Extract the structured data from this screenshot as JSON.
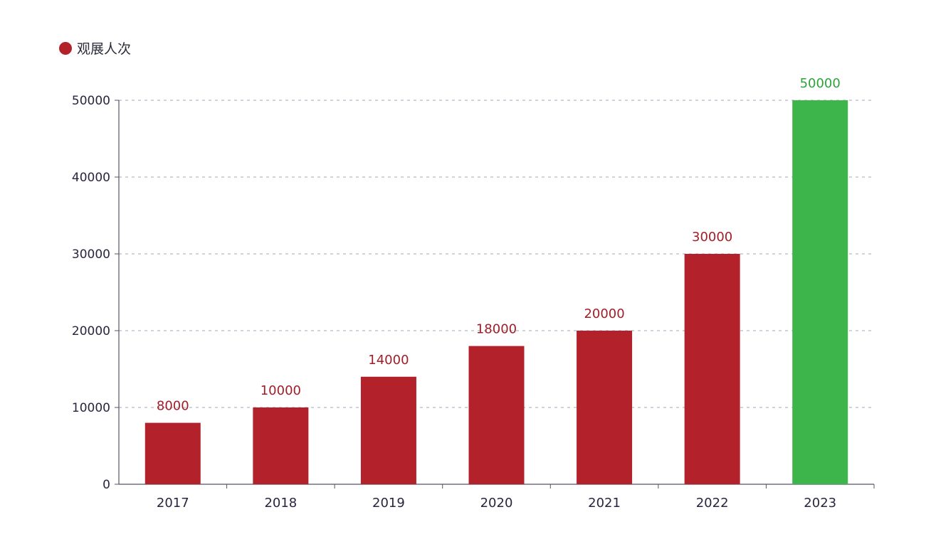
{
  "chart_data": {
    "type": "bar",
    "categories": [
      "2017",
      "2018",
      "2019",
      "2020",
      "2021",
      "2022",
      "2023"
    ],
    "series": [
      {
        "name": "观展人次",
        "values": [
          8000,
          10000,
          14000,
          18000,
          20000,
          30000,
          50000
        ]
      }
    ],
    "data_labels": [
      "8000",
      "10000",
      "14000",
      "18000",
      "20000",
      "30000",
      "50000"
    ],
    "y_ticks": [
      "0",
      "10000",
      "20000",
      "30000",
      "40000",
      "50000"
    ],
    "ylim": [
      0,
      50000
    ],
    "grid": "horizontal dashed",
    "legend_position": "top-left",
    "colors": {
      "bar": "#b3222a",
      "highlight_bar": "#3db54a",
      "bar_label": "#a01e28",
      "highlight_label": "#2ea23a",
      "grid": "#b8b8c8",
      "axis": "#555566"
    },
    "highlight_index": 6
  }
}
